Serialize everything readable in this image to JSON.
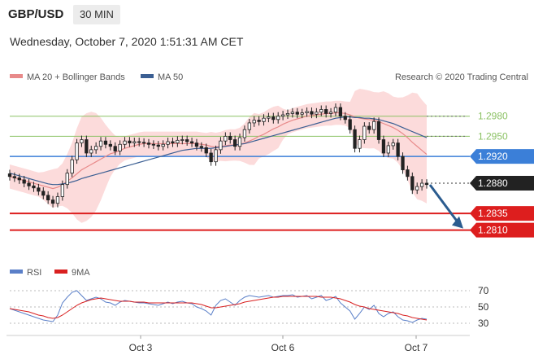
{
  "header": {
    "symbol": "GBP/USD",
    "timeframe": "30 MIN",
    "datetime": "Wednesday, October 7, 2020 1:51:31 AM CET"
  },
  "colors": {
    "candle": "#222222",
    "bollinger_fill": "#fbd5d5",
    "ma20": "#e88a8a",
    "ma50": "#3b5f93",
    "resistance": "#8cc265",
    "pivot": "#3b7fd8",
    "support": "#dd1e1e",
    "last_price": "#222222",
    "rsi": "#5a7fc8",
    "rsi_ma": "#d92020"
  },
  "chart_data": [
    {
      "type": "candlestick",
      "legend": [
        {
          "name": "MA 20 + Bollinger Bands",
          "color": "#e88a8a"
        },
        {
          "name": "MA 50",
          "color": "#3b5f93"
        }
      ],
      "credit": "Research © 2020 Trading Central",
      "x_ticks": [
        "Oct 3",
        "Oct 6",
        "Oct 7"
      ],
      "levels": [
        {
          "label": "1.2980",
          "value": 1.298,
          "kind": "resistance"
        },
        {
          "label": "1.2950",
          "value": 1.295,
          "kind": "resistance"
        },
        {
          "label": "1.2920",
          "value": 1.292,
          "kind": "pivot"
        },
        {
          "label": "1.2880",
          "value": 1.288,
          "kind": "last"
        },
        {
          "label": "1.2835",
          "value": 1.2835,
          "kind": "support"
        },
        {
          "label": "1.2810",
          "value": 1.281,
          "kind": "support"
        }
      ],
      "forecast_arrow": {
        "from": 1.288,
        "to": 1.281
      },
      "closes": [
        1.289,
        1.2888,
        1.2885,
        1.288,
        1.2876,
        1.2873,
        1.2868,
        1.2862,
        1.2855,
        1.285,
        1.286,
        1.2878,
        1.2895,
        1.2915,
        1.294,
        1.2945,
        1.2925,
        1.293,
        1.2935,
        1.2943,
        1.2938,
        1.2935,
        1.2928,
        1.2938,
        1.2943,
        1.294,
        1.2942,
        1.2941,
        1.294,
        1.2938,
        1.2937,
        1.2935,
        1.2938,
        1.2942,
        1.294,
        1.2944,
        1.2945,
        1.2942,
        1.294,
        1.2935,
        1.2933,
        1.2925,
        1.2912,
        1.293,
        1.2943,
        1.295,
        1.2945,
        1.2935,
        1.2948,
        1.296,
        1.297,
        1.2974,
        1.2972,
        1.2977,
        1.2979,
        1.2975,
        1.298,
        1.2982,
        1.2984,
        1.2986,
        1.2983,
        1.2985,
        1.2987,
        1.2983,
        1.2986,
        1.299,
        1.2984,
        1.2986,
        1.2993,
        1.298,
        1.2975,
        1.296,
        1.2932,
        1.2945,
        1.2965,
        1.296,
        1.2972,
        1.2945,
        1.2925,
        1.2936,
        1.294,
        1.292,
        1.29,
        1.289,
        1.287,
        1.2875,
        1.288,
        1.2878
      ],
      "ma20": [
        1.289,
        1.2888,
        1.2886,
        1.2884,
        1.2882,
        1.288,
        1.2878,
        1.2876,
        1.2874,
        1.2872,
        1.2874,
        1.2878,
        1.2883,
        1.2888,
        1.2894,
        1.29,
        1.2904,
        1.2908,
        1.2912,
        1.2916,
        1.292,
        1.2924,
        1.2926,
        1.2929,
        1.2932,
        1.2934,
        1.2936,
        1.2938,
        1.2939,
        1.2939,
        1.2939,
        1.2939,
        1.2939,
        1.2939,
        1.2939,
        1.2939,
        1.2939,
        1.2939,
        1.2939,
        1.2939,
        1.2938,
        1.2937,
        1.2935,
        1.2934,
        1.2935,
        1.2936,
        1.2937,
        1.2937,
        1.2938,
        1.294,
        1.2943,
        1.2946,
        1.295,
        1.2953,
        1.2957,
        1.2961,
        1.2964,
        1.2968,
        1.2971,
        1.2974,
        1.2976,
        1.2978,
        1.298,
        1.2981,
        1.2982,
        1.2983,
        1.2984,
        1.2984,
        1.2985,
        1.2985,
        1.2984,
        1.2982,
        1.2979,
        1.2977,
        1.2976,
        1.2975,
        1.2974,
        1.2972,
        1.2969,
        1.2966,
        1.2963,
        1.2959,
        1.2954,
        1.2948,
        1.2941,
        1.2935,
        1.2929,
        1.2923
      ],
      "ma50": [
        1.2895,
        1.2893,
        1.2891,
        1.2889,
        1.2887,
        1.2885,
        1.2883,
        1.2881,
        1.2879,
        1.2878,
        1.2878,
        1.2879,
        1.288,
        1.2882,
        1.2884,
        1.2887,
        1.2889,
        1.2891,
        1.2893,
        1.2895,
        1.2897,
        1.2899,
        1.2901,
        1.2903,
        1.2905,
        1.2907,
        1.2909,
        1.2911,
        1.2913,
        1.2915,
        1.2917,
        1.2919,
        1.2921,
        1.2923,
        1.2925,
        1.2927,
        1.2929,
        1.293,
        1.2931,
        1.2932,
        1.2932,
        1.2932,
        1.2932,
        1.2933,
        1.2934,
        1.2935,
        1.2936,
        1.2937,
        1.2938,
        1.2939,
        1.2941,
        1.2943,
        1.2945,
        1.2947,
        1.2949,
        1.2951,
        1.2953,
        1.2955,
        1.2957,
        1.2959,
        1.2961,
        1.2963,
        1.2965,
        1.2967,
        1.2969,
        1.2971,
        1.2973,
        1.2975,
        1.2977,
        1.2978,
        1.2979,
        1.2979,
        1.2978,
        1.2978,
        1.2977,
        1.2977,
        1.2976,
        1.2975,
        1.2973,
        1.2971,
        1.2969,
        1.2966,
        1.2963,
        1.296,
        1.2957,
        1.2954,
        1.2951,
        1.2948
      ]
    },
    {
      "type": "line",
      "legend": [
        {
          "name": "RSI",
          "color": "#5a7fc8"
        },
        {
          "name": "9MA",
          "color": "#d92020"
        }
      ],
      "y_ticks": [
        70,
        50,
        30
      ],
      "ylim": [
        22,
        75
      ],
      "rsi": [
        48,
        46,
        44,
        42,
        40,
        38,
        36,
        34,
        33,
        32,
        40,
        55,
        62,
        68,
        70,
        64,
        58,
        60,
        62,
        60,
        56,
        55,
        52,
        56,
        58,
        57,
        56,
        55,
        55,
        54,
        53,
        52,
        54,
        56,
        54,
        56,
        57,
        55,
        54,
        50,
        48,
        45,
        40,
        52,
        58,
        60,
        56,
        52,
        58,
        62,
        64,
        63,
        62,
        63,
        64,
        62,
        63,
        64,
        64,
        65,
        62,
        63,
        64,
        60,
        62,
        64,
        58,
        60,
        63,
        55,
        50,
        45,
        35,
        42,
        50,
        47,
        52,
        42,
        38,
        42,
        44,
        38,
        34,
        33,
        31,
        34,
        36,
        35
      ],
      "rsi_ma": [
        48,
        47,
        46,
        45,
        44,
        42,
        40,
        39,
        37,
        36,
        37,
        40,
        44,
        48,
        52,
        55,
        57,
        59,
        60,
        61,
        60,
        59,
        58,
        57,
        57,
        57,
        56,
        56,
        56,
        55,
        55,
        55,
        55,
        55,
        55,
        55,
        55,
        55,
        55,
        54,
        53,
        51,
        49,
        49,
        50,
        51,
        52,
        53,
        54,
        56,
        57,
        58,
        59,
        60,
        61,
        62,
        62,
        63,
        63,
        63,
        63,
        63,
        63,
        63,
        63,
        62,
        62,
        62,
        61,
        60,
        58,
        56,
        53,
        51,
        50,
        48,
        47,
        46,
        45,
        44,
        43,
        42,
        40,
        39,
        37,
        36,
        35,
        34
      ]
    }
  ]
}
